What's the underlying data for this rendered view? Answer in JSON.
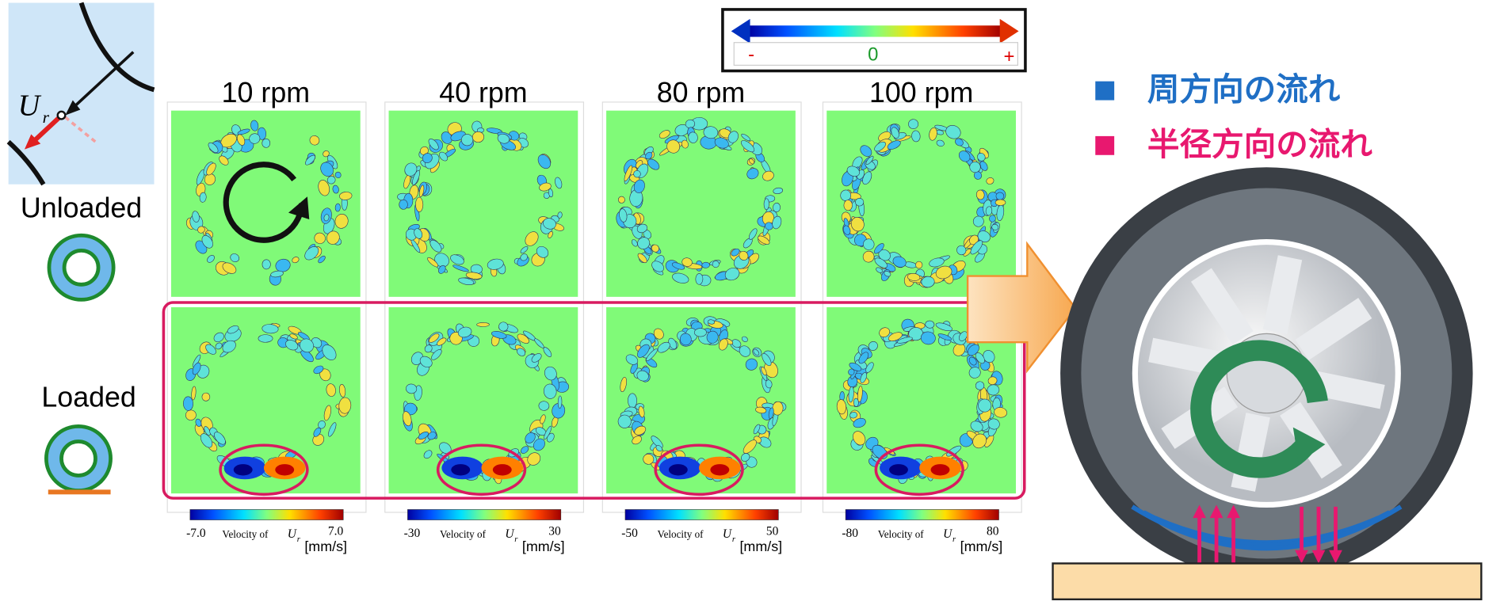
{
  "legend_bar": {
    "minus": "-",
    "zero": "0",
    "plus": "+"
  },
  "inset": {
    "symbol": "U",
    "subscript": "r"
  },
  "rows": [
    {
      "label": "Unloaded"
    },
    {
      "label": "Loaded"
    }
  ],
  "columns": [
    {
      "title": "10 rpm",
      "colorbar": {
        "min": "-7.0",
        "max": "7.0",
        "caption": "Velocity of",
        "symbol": "U",
        "subscript": "r",
        "unit": "[mm/s]"
      }
    },
    {
      "title": "40 rpm",
      "colorbar": {
        "min": "-30",
        "max": "30",
        "caption": "Velocity of",
        "symbol": "U",
        "subscript": "r",
        "unit": "[mm/s]"
      }
    },
    {
      "title": "80 rpm",
      "colorbar": {
        "min": "-50",
        "max": "50",
        "caption": "Velocity of",
        "symbol": "U",
        "subscript": "r",
        "unit": "[mm/s]"
      }
    },
    {
      "title": "100 rpm",
      "colorbar": {
        "min": "-80",
        "max": "80",
        "caption": "Velocity of",
        "symbol": "U",
        "subscript": "r",
        "unit": "[mm/s]"
      }
    }
  ],
  "flow_legend": [
    {
      "text": "周方向の流れ",
      "color": "#1f6fc5"
    },
    {
      "text": "半径方向の流れ",
      "color": "#e8186f"
    }
  ]
}
